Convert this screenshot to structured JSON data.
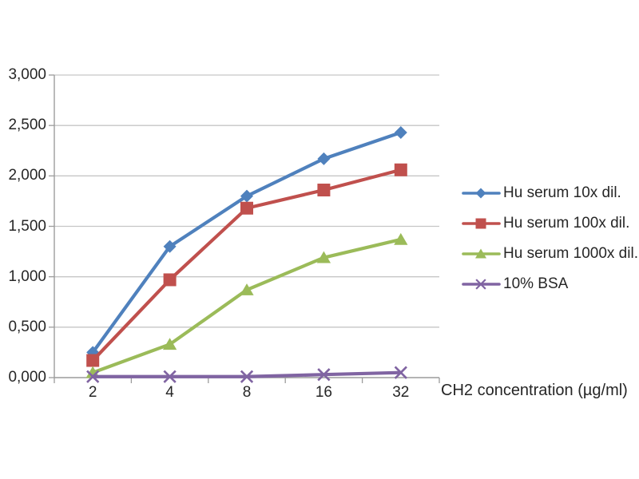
{
  "chart_data": {
    "type": "line",
    "title": "",
    "xlabel": "CH2 concentration (µg/ml)",
    "ylabel": "",
    "categories": [
      "2",
      "4",
      "8",
      "16",
      "32"
    ],
    "y_tick_labels": [
      "0,000",
      "0,500",
      "1,000",
      "1,500",
      "2,000",
      "2,500",
      "3,000"
    ],
    "ylim": [
      0,
      3
    ],
    "y_step": 0.5,
    "grid": "horizontal-only",
    "legend_position": "right",
    "series": [
      {
        "name": "Hu serum 10x dil.",
        "marker": "diamond",
        "color": "#4F81BD",
        "values": [
          0.25,
          1.3,
          1.8,
          2.17,
          2.43
        ]
      },
      {
        "name": "Hu serum 100x dil.",
        "marker": "square",
        "color": "#C0504D",
        "values": [
          0.17,
          0.97,
          1.68,
          1.86,
          2.06
        ]
      },
      {
        "name": "Hu serum 1000x dil.",
        "marker": "triangle",
        "color": "#9BBB59",
        "values": [
          0.05,
          0.33,
          0.87,
          1.19,
          1.37
        ]
      },
      {
        "name": "10% BSA",
        "marker": "x",
        "color": "#8064A2",
        "values": [
          0.01,
          0.01,
          0.01,
          0.03,
          0.05
        ]
      }
    ],
    "colors": {
      "background": "#ffffff",
      "gridline": "#c6c6c6",
      "axis": "#9c9c9c",
      "text": "#262626"
    }
  }
}
